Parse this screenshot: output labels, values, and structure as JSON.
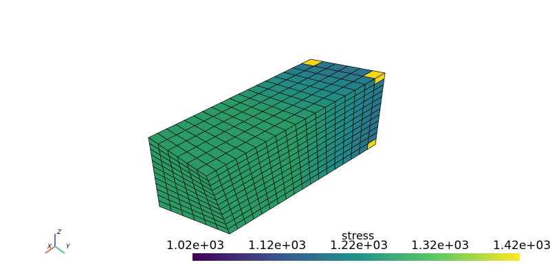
{
  "scalar_bar": {
    "title": "stress",
    "ticks": [
      "1.02e+03",
      "1.12e+03",
      "1.22e+03",
      "1.32e+03",
      "1.42e+03"
    ],
    "colormap": [
      "#440154",
      "#3b528b",
      "#21918c",
      "#5ec962",
      "#fde725"
    ],
    "range": [
      1020,
      1420
    ]
  },
  "orientation_axes": {
    "x_label": "X",
    "y_label": "Y",
    "z_label": "Z",
    "x_color": "#e8735a",
    "y_color": "#5bc48a",
    "z_color": "#5a6fd6"
  },
  "mesh": {
    "edge_color": "#000000",
    "base_color": "#2a9b64",
    "mid_color": "#1f8a86",
    "high_color": "#2e6e8e",
    "peak_color": "#f5d41f"
  }
}
